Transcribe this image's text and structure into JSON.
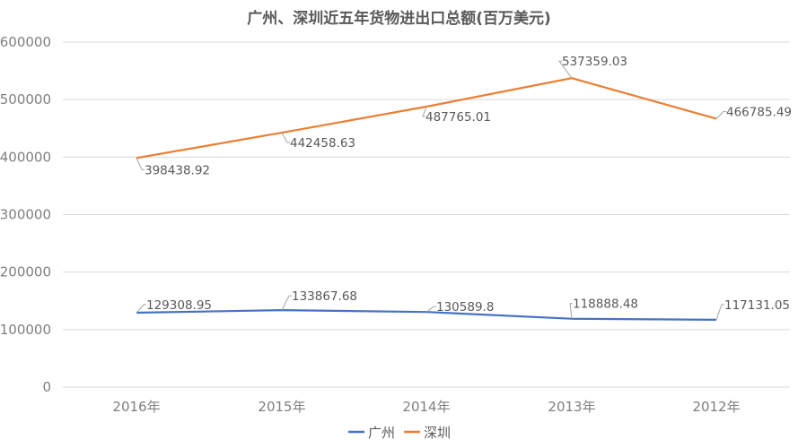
{
  "chart_data": {
    "type": "line",
    "title": "广州、深圳近五年货物进出口总额(百万美元)",
    "categories": [
      "2016年",
      "2015年",
      "2014年",
      "2013年",
      "2012年"
    ],
    "series": [
      {
        "name": "广州",
        "color": "#4472C4",
        "values": [
          129308.95,
          133867.68,
          130589.8,
          118888.48,
          117131.05
        ],
        "labels": [
          "129308.95",
          "133867.68",
          "130589.8",
          "118888.48",
          "117131.05"
        ]
      },
      {
        "name": "深圳",
        "color": "#ED7D31",
        "values": [
          398438.92,
          442458.63,
          487765.01,
          537359.03,
          466785.49
        ],
        "labels": [
          "398438.92",
          "442458.63",
          "487765.01",
          "537359.03",
          "466785.49"
        ]
      }
    ],
    "ylim": [
      0,
      600000
    ],
    "yticks": [
      0,
      100000,
      200000,
      300000,
      400000,
      500000,
      600000
    ],
    "ytick_labels": [
      "0",
      "100000",
      "200000",
      "300000",
      "400000",
      "500000",
      "600000"
    ],
    "grid": true,
    "legend_position": "bottom",
    "leader_color": "#a6a6a6",
    "grid_color": "#d9d9d9"
  }
}
